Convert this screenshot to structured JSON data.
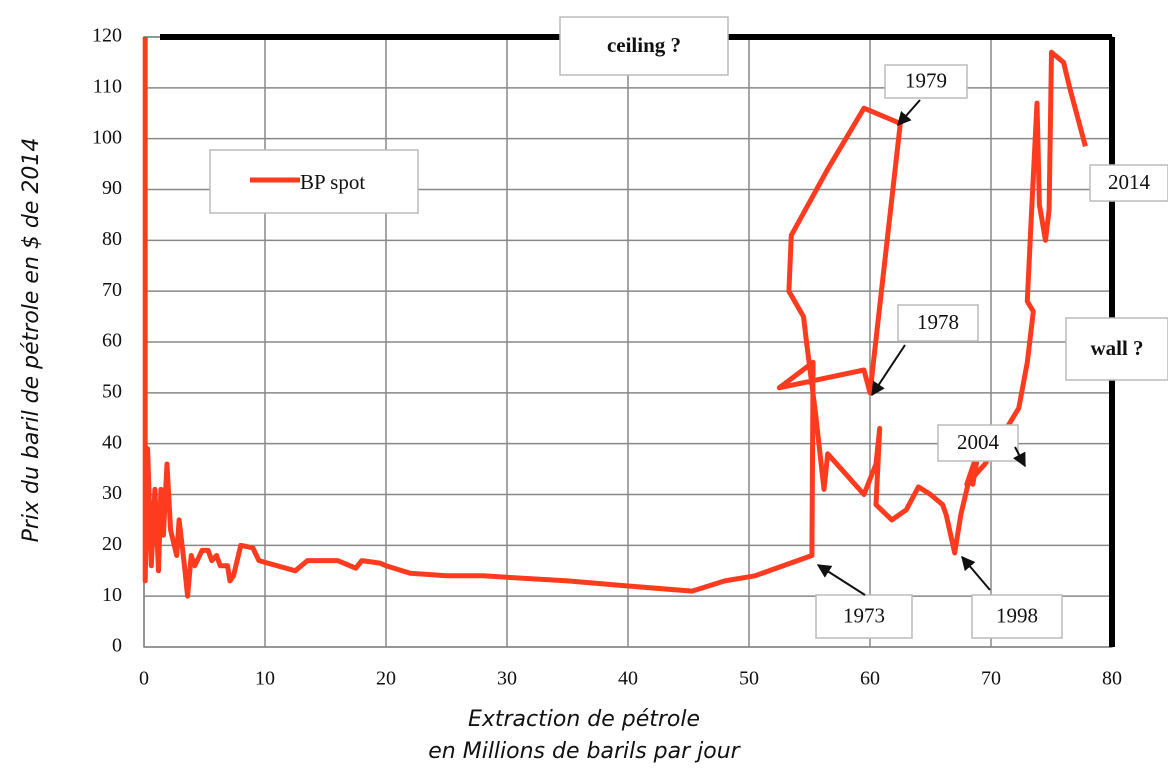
{
  "chart_data": {
    "type": "line",
    "xlabel": "Extraction de pétrole",
    "xlabel2": "en Millions de barils par jour",
    "ylabel": "Prix du baril de pétrole en $ de 2014",
    "xlim": [
      0,
      80
    ],
    "ylim": [
      0,
      120
    ],
    "xticks": [
      0,
      10,
      20,
      30,
      40,
      50,
      60,
      70,
      80
    ],
    "yticks": [
      0,
      10,
      20,
      30,
      40,
      50,
      60,
      70,
      80,
      90,
      100,
      110,
      120
    ],
    "grid": true,
    "series": [
      {
        "name": "BP spot",
        "color": "#ff3b1f",
        "x": [
          0.1,
          0.1,
          0.3,
          0.6,
          0.9,
          1.2,
          1.4,
          1.6,
          1.9,
          2.2,
          2.7,
          2.9,
          3.3,
          3.6,
          3.9,
          4.2,
          4.8,
          5.3,
          5.6,
          6,
          6.3,
          6.9,
          7.1,
          7.4,
          8,
          9,
          9.5,
          12.5,
          13.5,
          16,
          17.5,
          18,
          19.5,
          20,
          22,
          25,
          28,
          35,
          40,
          45.3,
          48,
          50.5,
          55.2,
          55.3,
          52.5,
          59.5,
          60,
          62.5,
          59.5,
          56.5,
          53.5,
          53.3,
          54.5,
          54.7,
          55.5,
          56.2,
          56.5,
          59.5,
          60.5,
          60.8,
          60.5,
          61.8,
          63,
          64,
          65,
          66,
          66.3,
          67,
          67.5,
          68.2,
          68.5,
          69,
          68,
          69.5,
          72.3,
          73,
          73.5,
          73,
          73.3,
          73.8,
          74,
          74.5,
          74.8,
          75,
          76,
          76.5,
          77.8
        ],
        "values": [
          120,
          13,
          39,
          16,
          31,
          15,
          31,
          22,
          36,
          23,
          18,
          25,
          17,
          10,
          18,
          16,
          19,
          19,
          17,
          18,
          16,
          16,
          13,
          14,
          20,
          19.5,
          17,
          15,
          17,
          17,
          15.5,
          17,
          16.5,
          16,
          14.5,
          14,
          14,
          13,
          12,
          11,
          13,
          14,
          18,
          56,
          51,
          54.5,
          50,
          103,
          106,
          94,
          81,
          70,
          65,
          61,
          46,
          31,
          38,
          30,
          36,
          43,
          28,
          25,
          27,
          31.5,
          30,
          28,
          26,
          18.5,
          26,
          33,
          32,
          39,
          32,
          36,
          47,
          56,
          66,
          68,
          83,
          107,
          87,
          80,
          86,
          117,
          115,
          110,
          98.5
        ]
      }
    ],
    "annotations": [
      "ceiling ?",
      "wall ?",
      "1979",
      "2014",
      "1978",
      "2004",
      "1973",
      "1998"
    ]
  }
}
